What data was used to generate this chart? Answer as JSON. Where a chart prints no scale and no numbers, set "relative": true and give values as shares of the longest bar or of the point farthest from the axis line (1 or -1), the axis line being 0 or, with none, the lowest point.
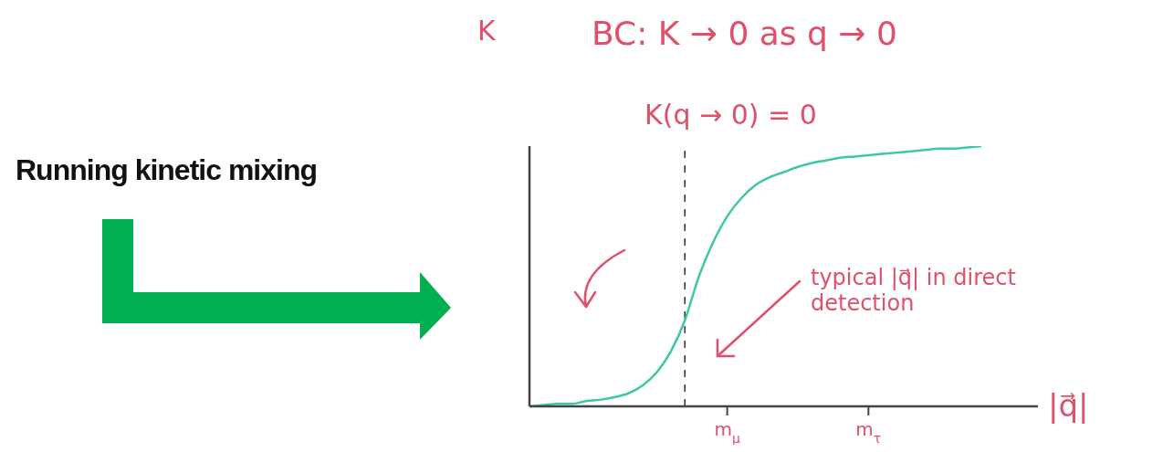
{
  "chart_data": {
    "type": "line",
    "title": "Running kinetic mixing",
    "xlabel": "|q⃗|",
    "ylabel": "K",
    "relative": true,
    "tick_labels": "x",
    "annotations": [
      "BC: K → 0 as q → 0",
      "K(q → 0) = 0",
      "typical |q⃗| in direct detection"
    ],
    "categories": [
      null,
      null,
      null,
      null,
      null,
      null,
      null,
      null,
      null,
      null,
      null,
      null,
      null,
      null,
      "m$_{μ}$",
      null,
      null,
      null,
      null,
      null,
      null,
      null,
      null,
      null,
      "m$_{τ}$",
      null,
      null,
      null,
      null,
      null,
      null,
      null,
      null,
      null,
      null,
      null,
      null
    ],
    "series": [
      {
        "color": "#3cc8a8",
        "values": [
          0,
          0.005,
          0.01,
          0.01,
          0.02,
          0.025,
          0.035,
          0.05,
          0.08,
          0.13,
          0.21,
          0.33,
          0.5,
          0.63,
          0.73,
          0.8,
          0.85,
          0.88,
          0.9,
          0.92,
          0.935,
          0.945,
          0.955,
          0.96,
          0.965,
          0.97,
          0.975,
          0.98,
          0.985,
          0.99,
          0.99,
          0.995,
          1,
          null,
          null,
          null,
          null
        ]
      }
    ]
  }
}
